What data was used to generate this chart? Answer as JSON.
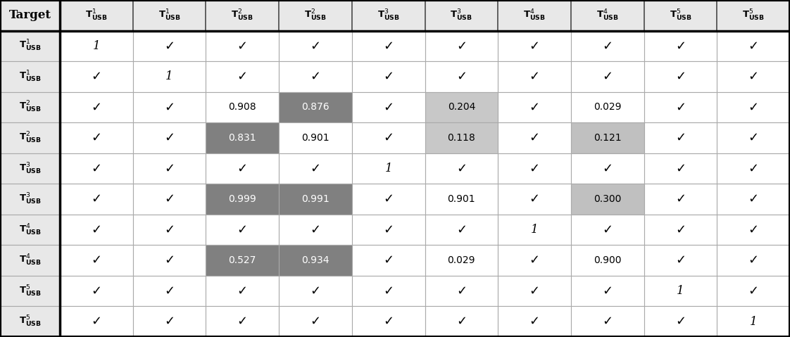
{
  "col_superscripts": [
    "",
    "1",
    "1",
    "2",
    "2",
    "3",
    "3",
    "4",
    "4",
    "5",
    "5"
  ],
  "row_superscripts": [
    "1",
    "1",
    "2",
    "2",
    "3",
    "3",
    "4",
    "4",
    "5",
    "5"
  ],
  "cell_data": [
    [
      "1",
      "\\checkmark",
      "\\checkmark",
      "\\checkmark",
      "\\checkmark",
      "\\checkmark",
      "\\checkmark",
      "\\checkmark",
      "\\checkmark",
      "\\checkmark"
    ],
    [
      "\\checkmark",
      "1",
      "\\checkmark",
      "\\checkmark",
      "\\checkmark",
      "\\checkmark",
      "\\checkmark",
      "\\checkmark",
      "\\checkmark",
      "\\checkmark"
    ],
    [
      "\\checkmark",
      "\\checkmark",
      "0.908",
      "0.876",
      "\\checkmark",
      "0.204",
      "\\checkmark",
      "0.029",
      "\\checkmark",
      "\\checkmark"
    ],
    [
      "\\checkmark",
      "\\checkmark",
      "0.831",
      "0.901",
      "\\checkmark",
      "0.118",
      "\\checkmark",
      "0.121",
      "\\checkmark",
      "\\checkmark"
    ],
    [
      "\\checkmark",
      "\\checkmark",
      "\\checkmark",
      "\\checkmark",
      "1",
      "\\checkmark",
      "\\checkmark",
      "\\checkmark",
      "\\checkmark",
      "\\checkmark"
    ],
    [
      "\\checkmark",
      "\\checkmark",
      "0.999",
      "0.991",
      "\\checkmark",
      "0.901",
      "\\checkmark",
      "0.300",
      "\\checkmark",
      "\\checkmark"
    ],
    [
      "\\checkmark",
      "\\checkmark",
      "\\checkmark",
      "\\checkmark",
      "\\checkmark",
      "\\checkmark",
      "1",
      "\\checkmark",
      "\\checkmark",
      "\\checkmark"
    ],
    [
      "\\checkmark",
      "\\checkmark",
      "0.527",
      "0.934",
      "\\checkmark",
      "0.029",
      "\\checkmark",
      "0.900",
      "\\checkmark",
      "\\checkmark"
    ],
    [
      "\\checkmark",
      "\\checkmark",
      "\\checkmark",
      "\\checkmark",
      "\\checkmark",
      "\\checkmark",
      "\\checkmark",
      "\\checkmark",
      "1",
      "\\checkmark"
    ],
    [
      "\\checkmark",
      "\\checkmark",
      "\\checkmark",
      "\\checkmark",
      "\\checkmark",
      "\\checkmark",
      "\\checkmark",
      "\\checkmark",
      "\\checkmark",
      "1"
    ]
  ],
  "cell_colors": [
    [
      "white",
      "white",
      "white",
      "white",
      "white",
      "white",
      "white",
      "white",
      "white",
      "white"
    ],
    [
      "white",
      "white",
      "white",
      "white",
      "white",
      "white",
      "white",
      "white",
      "white",
      "white"
    ],
    [
      "white",
      "white",
      "white",
      "#808080",
      "white",
      "#c8c8c8",
      "white",
      "white",
      "white",
      "white"
    ],
    [
      "white",
      "white",
      "#808080",
      "white",
      "white",
      "#c8c8c8",
      "white",
      "#c0c0c0",
      "white",
      "white"
    ],
    [
      "white",
      "white",
      "white",
      "white",
      "white",
      "white",
      "white",
      "white",
      "white",
      "white"
    ],
    [
      "white",
      "white",
      "#808080",
      "#808080",
      "white",
      "white",
      "white",
      "#c0c0c0",
      "white",
      "white"
    ],
    [
      "white",
      "white",
      "white",
      "white",
      "white",
      "white",
      "white",
      "white",
      "white",
      "white"
    ],
    [
      "white",
      "white",
      "#808080",
      "#808080",
      "white",
      "white",
      "white",
      "white",
      "white",
      "white"
    ],
    [
      "white",
      "white",
      "white",
      "white",
      "white",
      "white",
      "white",
      "white",
      "white",
      "white"
    ],
    [
      "white",
      "white",
      "white",
      "white",
      "white",
      "white",
      "white",
      "white",
      "white",
      "white"
    ]
  ],
  "header_bg": "#e8e8e8",
  "header_text": "#000000",
  "grid_color": "#aaaaaa",
  "outer_border_color": "#000000",
  "figsize": [
    11.22,
    4.79
  ],
  "dpi": 100
}
